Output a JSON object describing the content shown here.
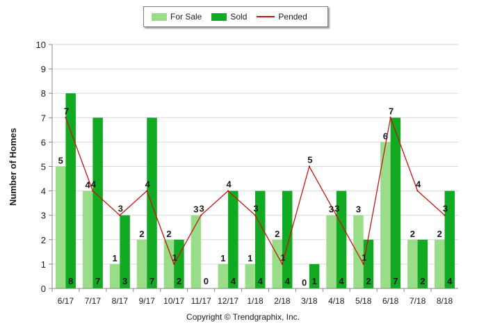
{
  "chart_data": {
    "type": "bar",
    "categories": [
      "6/17",
      "7/17",
      "8/17",
      "9/17",
      "10/17",
      "11/17",
      "12/17",
      "1/18",
      "2/18",
      "3/18",
      "4/18",
      "5/18",
      "6/18",
      "7/18",
      "8/18"
    ],
    "series": [
      {
        "name": "For Sale",
        "type": "bar",
        "color": "#99dd88",
        "values": [
          5,
          4,
          1,
          2,
          2,
          3,
          1,
          1,
          2,
          0,
          3,
          3,
          6,
          2,
          2
        ]
      },
      {
        "name": "Sold",
        "type": "bar",
        "color": "#11aa22",
        "values": [
          8,
          7,
          3,
          7,
          2,
          0,
          4,
          4,
          4,
          1,
          4,
          2,
          7,
          2,
          4
        ]
      },
      {
        "name": "Pended",
        "type": "line",
        "color": "#cc1111",
        "values": [
          7,
          4,
          3,
          4,
          1,
          3,
          4,
          3,
          1,
          5,
          3,
          1,
          7,
          4,
          3
        ]
      }
    ],
    "ylabel": "Number of Homes",
    "xlabel": "",
    "ylim": [
      0,
      10
    ],
    "yticks": [
      0,
      1,
      2,
      3,
      4,
      5,
      6,
      7,
      8,
      9,
      10
    ],
    "grid": true,
    "legend_position": "top-center"
  },
  "legend": {
    "for_sale": "For Sale",
    "sold": "Sold",
    "pended": "Pended"
  },
  "footer": {
    "copyright": "Copyright © Trendgraphix, Inc."
  }
}
